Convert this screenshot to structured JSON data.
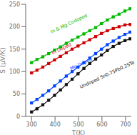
{
  "chart_data": {
    "type": "line",
    "xlabel": "T(K)",
    "ylabel": "S (μV/K)",
    "xlim": [
      275,
      725
    ],
    "xticks": [
      300,
      400,
      500,
      600,
      700
    ],
    "ylim": [
      0,
      250
    ],
    "yticks": [
      0,
      50,
      100,
      150,
      200,
      250
    ],
    "grid": false,
    "marker": "square",
    "x": [
      300,
      323,
      348,
      373,
      398,
      423,
      448,
      473,
      498,
      523,
      548,
      573,
      598,
      623,
      648,
      673,
      698,
      720
    ],
    "series": [
      {
        "name": "In & Mg Codoped",
        "color": "#00bb00",
        "values": [
          120,
          127,
          133,
          140,
          148,
          155,
          163,
          170,
          177,
          184,
          191,
          198,
          207,
          215,
          222,
          228,
          235,
          240
        ]
      },
      {
        "name": "In Doped",
        "color": "#cc0000",
        "values": [
          97,
          103,
          110,
          118,
          126,
          134,
          142,
          150,
          157,
          164,
          171,
          178,
          185,
          191,
          196,
          200,
          204,
          205
        ]
      },
      {
        "name": "Mg Doped",
        "color": "#0044ff",
        "values": [
          30,
          38,
          47,
          57,
          68,
          79,
          90,
          100,
          110,
          120,
          130,
          140,
          150,
          160,
          168,
          176,
          183,
          188
        ]
      },
      {
        "name": "Undoped Sn0.75Pb0.25Te",
        "color": "#111111",
        "values": [
          10,
          17,
          26,
          36,
          47,
          59,
          71,
          83,
          95,
          107,
          118,
          128,
          137,
          147,
          156,
          163,
          169,
          173
        ]
      }
    ],
    "annotations": [
      {
        "text": "In & Mg Codoped",
        "x": 385,
        "y": 185,
        "color": "#00bb00"
      },
      {
        "text": "In Doped",
        "x": 390,
        "y": 138,
        "color": "#cc0000"
      },
      {
        "text": "Mg Doped",
        "x": 468,
        "y": 103,
        "color": "#0044ff"
      },
      {
        "text": "Undoped Sn0.75Pb0.25Te",
        "x": 510,
        "y": 62,
        "color": "#111111"
      }
    ]
  }
}
